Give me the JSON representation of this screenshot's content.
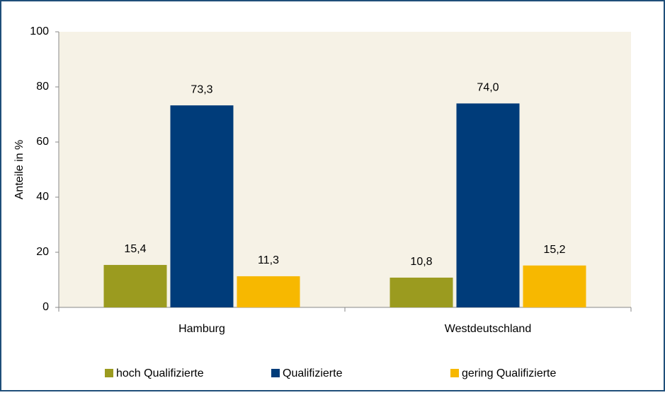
{
  "chart_data": {
    "type": "bar",
    "ylabel": "Anteile in %",
    "categories": [
      "Hamburg",
      "Westdeutschland"
    ],
    "series": [
      {
        "name": "hoch Qualifizierte",
        "color": "#9b9b1f",
        "values": [
          15.4,
          10.8
        ],
        "value_labels": [
          "15,4",
          "10,8"
        ]
      },
      {
        "name": "Qualifizierte",
        "color": "#003c7a",
        "values": [
          73.3,
          74.0
        ],
        "value_labels": [
          "73,3",
          "74,0"
        ]
      },
      {
        "name": "gering Qualifizierte",
        "color": "#f7b800",
        "values": [
          11.3,
          15.2
        ],
        "value_labels": [
          "11,3",
          "15,2"
        ]
      }
    ],
    "ylim": [
      0,
      100
    ],
    "yticks": [
      0,
      20,
      40,
      60,
      80,
      100
    ],
    "grid": false,
    "legend": "bottom"
  }
}
